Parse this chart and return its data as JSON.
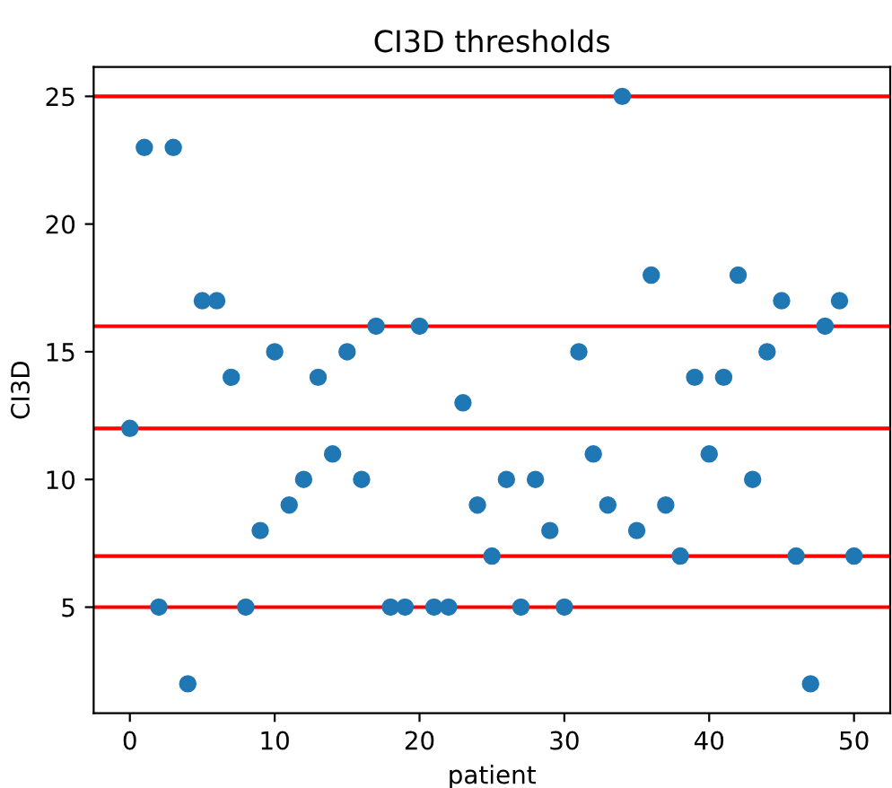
{
  "chart_data": {
    "type": "scatter",
    "title": "CI3D thresholds",
    "xlabel": "patient",
    "ylabel": "CI3D",
    "x": [
      0,
      1,
      2,
      3,
      4,
      5,
      6,
      7,
      8,
      9,
      10,
      11,
      12,
      13,
      14,
      15,
      16,
      17,
      18,
      19,
      20,
      21,
      22,
      23,
      24,
      25,
      26,
      27,
      28,
      29,
      30,
      31,
      32,
      33,
      34,
      35,
      36,
      37,
      38,
      39,
      40,
      41,
      42,
      43,
      44,
      45,
      46,
      47,
      48,
      49,
      50
    ],
    "series": [
      {
        "color": "#1f77b4",
        "values": [
          12,
          23,
          5,
          23,
          2,
          17,
          17,
          14,
          5,
          8,
          15,
          9,
          10,
          14,
          11,
          15,
          10,
          16,
          5,
          5,
          16,
          5,
          5,
          13,
          9,
          7,
          10,
          5,
          10,
          8,
          5,
          15,
          11,
          9,
          25,
          8,
          18,
          9,
          7,
          14,
          11,
          14,
          18,
          10,
          15,
          17,
          7,
          2,
          16,
          17,
          7
        ]
      }
    ],
    "marker": "circle",
    "xlim": [
      -2.5,
      52.5
    ],
    "xticks": [
      0,
      10,
      20,
      30,
      40,
      50
    ],
    "ylim": [
      0.85,
      26.15
    ],
    "yticks": [
      5,
      10,
      15,
      20,
      25
    ],
    "ref_lines": [
      {
        "axis": "y",
        "value": 5,
        "color": "#ff0000"
      },
      {
        "axis": "y",
        "value": 7,
        "color": "#ff0000"
      },
      {
        "axis": "y",
        "value": 12,
        "color": "#ff0000"
      },
      {
        "axis": "y",
        "value": 16,
        "color": "#ff0000"
      },
      {
        "axis": "y",
        "value": 25,
        "color": "#ff0000"
      }
    ]
  }
}
